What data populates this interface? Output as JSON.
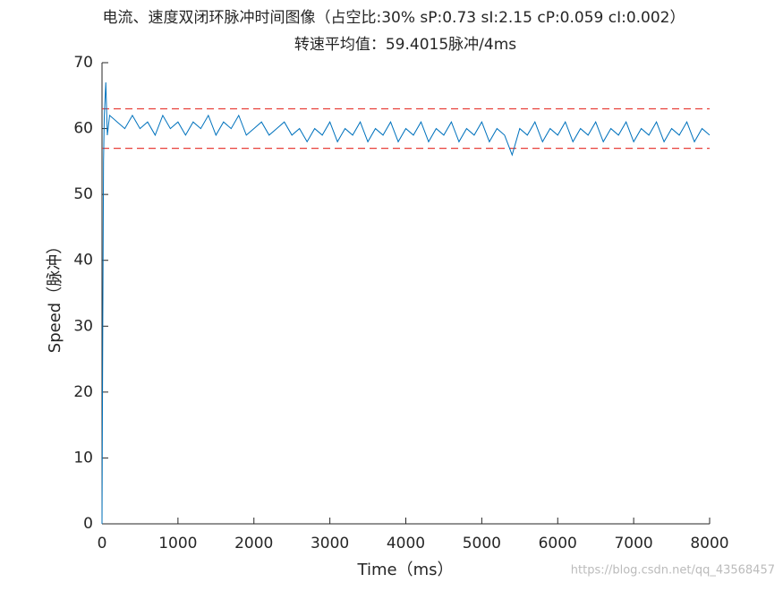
{
  "chart_data": {
    "type": "line",
    "title": "电流、速度双闭环脉冲时间图像（占空比:30%  sP:0.73  sI:2.15  cP:0.059  cI:0.002）",
    "subtitle": "转速平均值：59.4015脉冲/4ms",
    "x_label": "Time（ms）",
    "y_label": "Speed（脉冲）",
    "watermark": "https://blog.csdn.net/qq_43568457",
    "x": [
      0,
      10,
      20,
      30,
      50,
      70,
      100,
      200,
      300,
      400,
      500,
      600,
      700,
      800,
      900,
      1000,
      1100,
      1200,
      1300,
      1400,
      1500,
      1600,
      1700,
      1800,
      1900,
      2000,
      2100,
      2200,
      2300,
      2400,
      2500,
      2600,
      2700,
      2800,
      2900,
      3000,
      3100,
      3200,
      3300,
      3400,
      3500,
      3600,
      3700,
      3800,
      3900,
      4000,
      4100,
      4200,
      4300,
      4400,
      4500,
      4600,
      4700,
      4800,
      4900,
      5000,
      5100,
      5200,
      5300,
      5400,
      5500,
      5600,
      5700,
      5800,
      5900,
      6000,
      6100,
      6200,
      6300,
      6400,
      6500,
      6600,
      6700,
      6800,
      6900,
      7000,
      7100,
      7200,
      7300,
      7400,
      7500,
      7600,
      7700,
      7800,
      7900,
      8000
    ],
    "series": [
      {
        "color": "#0072bd",
        "values": [
          0,
          30,
          55,
          62,
          67,
          59,
          62,
          61,
          60,
          62,
          60,
          61,
          59,
          62,
          60,
          61,
          59,
          61,
          60,
          62,
          59,
          61,
          60,
          62,
          59,
          60,
          61,
          59,
          60,
          61,
          59,
          60,
          58,
          60,
          59,
          61,
          58,
          60,
          59,
          61,
          58,
          60,
          59,
          61,
          58,
          60,
          59,
          61,
          58,
          60,
          59,
          61,
          58,
          60,
          59,
          61,
          58,
          60,
          59,
          56,
          60,
          59,
          61,
          58,
          60,
          59,
          61,
          58,
          60,
          59,
          61,
          58,
          60,
          59,
          61,
          58,
          60,
          59,
          61,
          58,
          60,
          59,
          61,
          58,
          60,
          59
        ]
      }
    ],
    "hlines": [
      {
        "value": 63,
        "color": "#e8403a"
      },
      {
        "value": 57,
        "color": "#e8403a"
      }
    ],
    "xlim": [
      0,
      8000
    ],
    "xticks": [
      0,
      1000,
      2000,
      3000,
      4000,
      5000,
      6000,
      7000,
      8000
    ],
    "ylim": [
      0,
      70
    ],
    "yticks": [
      0,
      10,
      20,
      30,
      40,
      50,
      60,
      70
    ]
  }
}
